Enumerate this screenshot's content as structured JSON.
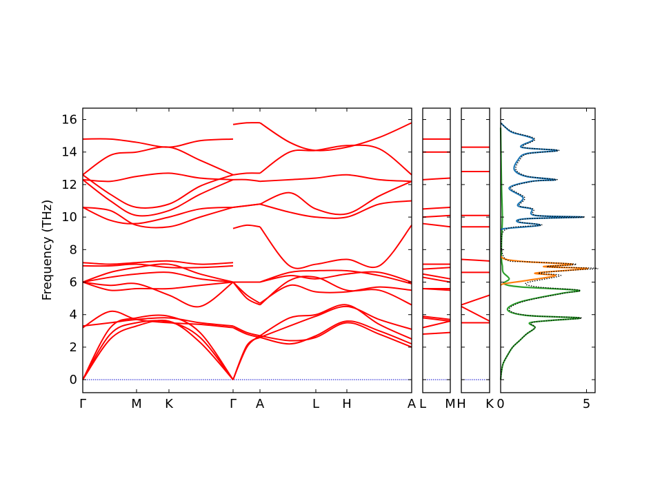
{
  "chart_data": {
    "type": "line",
    "ylabel": "Frequency (THz)",
    "ylim": [
      -0.8,
      16.7
    ],
    "yticks": [
      0,
      2,
      4,
      6,
      8,
      10,
      12,
      14,
      16
    ],
    "band_color": "#ff0000",
    "zero_line_color": "#0000cc",
    "panels": [
      {
        "id": "main",
        "kpoints": [
          "Γ",
          "M",
          "K",
          "Γ",
          "A",
          "L",
          "H",
          "A"
        ],
        "segments": [
          {
            "from": "Γ",
            "to": "Γ",
            "bands": [
              [
                0,
                2.5,
                3.3,
                3.6,
                2.3,
                0
              ],
              [
                0,
                2.8,
                3.5,
                3.55,
                2.6,
                0
              ],
              [
                0,
                3.2,
                3.8,
                3.9,
                2.9,
                0
              ],
              [
                3.2,
                4.2,
                3.7,
                3.5,
                3.4,
                3.2
              ],
              [
                3.3,
                3.5,
                3.7,
                3.8,
                3.5,
                3.3
              ],
              [
                6.0,
                5.5,
                5.6,
                5.6,
                5.8,
                6.0
              ],
              [
                6.0,
                5.8,
                5.9,
                5.2,
                4.5,
                6.0
              ],
              [
                6.0,
                6.3,
                6.5,
                6.6,
                6.2,
                6.0
              ],
              [
                6.0,
                6.6,
                6.9,
                7.1,
                6.5,
                6.0
              ],
              [
                7.0,
                7.0,
                7.1,
                6.9,
                6.9,
                7.0
              ],
              [
                7.2,
                7.1,
                7.2,
                7.3,
                7.1,
                7.2
              ],
              [
                10.6,
                10.4,
                9.5,
                9.4,
                10.0,
                10.6
              ],
              [
                10.6,
                9.8,
                9.6,
                10.0,
                10.5,
                10.6
              ],
              [
                12.3,
                11.0,
                10.1,
                10.4,
                11.4,
                12.3
              ],
              [
                12.3,
                12.2,
                12.5,
                12.7,
                12.4,
                12.3
              ],
              [
                12.6,
                11.4,
                10.6,
                10.8,
                11.9,
                12.6
              ],
              [
                12.6,
                13.8,
                14.0,
                14.3,
                13.5,
                12.6
              ],
              [
                14.8,
                14.8,
                14.6,
                14.3,
                14.7,
                14.8
              ]
            ]
          },
          {
            "from": "Γ",
            "to": "A",
            "bands": [
              [
                0,
                2.0,
                2.7
              ],
              [
                0,
                2.1,
                2.6
              ],
              [
                3.2,
                2.8,
                2.6
              ],
              [
                3.3,
                2.9,
                2.7
              ],
              [
                6.0,
                5.0,
                4.6
              ],
              [
                6.0,
                5.2,
                4.7
              ],
              [
                6.0,
                6.0,
                6.0
              ],
              [
                6.0,
                6.0,
                6.0
              ],
              [
                9.3,
                9.5,
                9.4
              ],
              [
                10.6,
                10.7,
                10.8
              ],
              [
                10.6,
                10.7,
                10.8
              ],
              [
                12.3,
                12.3,
                12.2
              ],
              [
                12.6,
                12.7,
                12.7
              ],
              [
                15.7,
                15.8,
                15.8
              ]
            ]
          },
          {
            "from": "A",
            "to": "A",
            "bands": [
              [
                2.7,
                2.4,
                2.6,
                3.5,
                2.8,
                2.0
              ],
              [
                2.6,
                2.2,
                2.7,
                3.6,
                3.0,
                2.2
              ],
              [
                2.7,
                3.8,
                4.0,
                4.6,
                3.4,
                2.5
              ],
              [
                2.6,
                3.3,
                3.9,
                4.5,
                3.7,
                3.1
              ],
              [
                4.6,
                6.1,
                6.3,
                5.5,
                5.5,
                4.6
              ],
              [
                4.7,
                5.8,
                5.4,
                5.4,
                5.7,
                5.5
              ],
              [
                6.0,
                6.4,
                6.2,
                6.5,
                6.6,
                6.0
              ],
              [
                6.0,
                6.6,
                6.7,
                6.7,
                6.4,
                5.9
              ],
              [
                9.4,
                7.0,
                7.1,
                7.4,
                7.0,
                9.5
              ],
              [
                10.8,
                11.5,
                10.5,
                10.2,
                11.3,
                12.2
              ],
              [
                10.8,
                10.3,
                10.0,
                10.0,
                10.8,
                11.0
              ],
              [
                12.2,
                12.3,
                12.4,
                12.6,
                12.3,
                12.2
              ],
              [
                12.7,
                14.0,
                14.1,
                14.4,
                14.2,
                12.6
              ],
              [
                15.8,
                14.6,
                14.1,
                14.3,
                14.9,
                15.8
              ]
            ]
          }
        ]
      },
      {
        "id": "L-M",
        "kpoints": [
          "L",
          "M"
        ],
        "bands": [
          [
            2.8,
            2.9
          ],
          [
            3.2,
            3.6
          ],
          [
            3.8,
            3.6
          ],
          [
            3.9,
            3.7
          ],
          [
            5.6,
            5.5
          ],
          [
            5.6,
            5.6
          ],
          [
            6.3,
            6.0
          ],
          [
            6.5,
            6.2
          ],
          [
            6.8,
            6.9
          ],
          [
            7.1,
            7.1
          ],
          [
            10.0,
            10.1
          ],
          [
            10.5,
            10.6
          ],
          [
            12.3,
            12.4
          ],
          [
            14.0,
            14.0
          ],
          [
            14.8,
            14.8
          ],
          [
            9.6,
            9.4
          ]
        ]
      },
      {
        "id": "H-K",
        "kpoints": [
          "H",
          "K"
        ],
        "bands": [
          [
            3.5,
            3.5
          ],
          [
            4.5,
            3.6
          ],
          [
            4.6,
            5.2
          ],
          [
            6.6,
            6.6
          ],
          [
            7.4,
            7.3
          ],
          [
            9.4,
            9.4
          ],
          [
            10.1,
            10.1
          ],
          [
            12.8,
            12.8
          ],
          [
            14.3,
            14.3
          ]
        ]
      }
    ],
    "dos": {
      "xticks": [
        0,
        5
      ],
      "xlim": [
        0,
        5.5
      ],
      "series": [
        {
          "color": "#2ca02c",
          "points": [
            [
              0.0,
              0
            ],
            [
              0.05,
              0.5
            ],
            [
              0.15,
              1.0
            ],
            [
              0.4,
              1.5
            ],
            [
              0.7,
              2.0
            ],
            [
              1.1,
              2.4
            ],
            [
              1.5,
              2.8
            ],
            [
              2.0,
              3.2
            ],
            [
              1.7,
              3.5
            ],
            [
              3.0,
              3.65
            ],
            [
              4.6,
              3.8
            ],
            [
              1.5,
              3.95
            ],
            [
              0.4,
              4.3
            ],
            [
              1.2,
              4.8
            ],
            [
              3.5,
              5.3
            ],
            [
              4.5,
              5.5
            ],
            [
              1.2,
              5.7
            ],
            [
              0.2,
              5.9
            ],
            [
              0.5,
              6.2
            ],
            [
              0.15,
              6.6
            ],
            [
              0.1,
              7.0
            ],
            [
              0.05,
              7.4
            ],
            [
              0.05,
              8.5
            ],
            [
              0.1,
              10.0
            ],
            [
              0.05,
              12.0
            ],
            [
              0.0,
              15.5
            ]
          ]
        },
        {
          "color": "#ff7f0e",
          "points": [
            [
              0.0,
              5.8
            ],
            [
              0.2,
              5.9
            ],
            [
              1.5,
              6.1
            ],
            [
              3.2,
              6.4
            ],
            [
              2.0,
              6.55
            ],
            [
              4.2,
              6.75
            ],
            [
              5.0,
              6.85
            ],
            [
              2.5,
              6.95
            ],
            [
              4.2,
              7.1
            ],
            [
              1.5,
              7.25
            ],
            [
              0.3,
              7.4
            ],
            [
              0.0,
              7.6
            ]
          ]
        },
        {
          "color": "#1f77b4",
          "points": [
            [
              0.0,
              9.2
            ],
            [
              0.3,
              9.3
            ],
            [
              2.3,
              9.5
            ],
            [
              1.0,
              9.7
            ],
            [
              1.5,
              9.9
            ],
            [
              4.8,
              10.0
            ],
            [
              2.0,
              10.1
            ],
            [
              1.8,
              10.5
            ],
            [
              1.0,
              10.7
            ],
            [
              1.3,
              11.2
            ],
            [
              0.5,
              11.8
            ],
            [
              1.8,
              12.2
            ],
            [
              3.2,
              12.3
            ],
            [
              1.5,
              12.5
            ],
            [
              0.8,
              12.9
            ],
            [
              1.0,
              13.5
            ],
            [
              1.5,
              13.9
            ],
            [
              3.3,
              14.1
            ],
            [
              1.2,
              14.3
            ],
            [
              1.9,
              14.8
            ],
            [
              0.7,
              15.2
            ],
            [
              0.3,
              15.5
            ],
            [
              0.0,
              15.8
            ]
          ]
        },
        {
          "color": "#000000",
          "dotted": true,
          "points": [
            [
              0.0,
              0
            ],
            [
              0.05,
              0.5
            ],
            [
              0.15,
              1.0
            ],
            [
              0.4,
              1.5
            ],
            [
              0.7,
              2.0
            ],
            [
              1.1,
              2.4
            ],
            [
              1.5,
              2.8
            ],
            [
              2.0,
              3.2
            ],
            [
              1.8,
              3.5
            ],
            [
              3.0,
              3.65
            ],
            [
              4.7,
              3.8
            ],
            [
              1.6,
              3.95
            ],
            [
              0.5,
              4.3
            ],
            [
              1.3,
              4.8
            ],
            [
              3.6,
              5.3
            ],
            [
              4.6,
              5.5
            ],
            [
              2.2,
              5.7
            ],
            [
              1.5,
              5.95
            ],
            [
              3.5,
              6.4
            ],
            [
              2.2,
              6.55
            ],
            [
              4.4,
              6.75
            ],
            [
              5.6,
              6.85
            ],
            [
              2.7,
              6.95
            ],
            [
              4.4,
              7.1
            ],
            [
              1.6,
              7.25
            ],
            [
              0.3,
              7.4
            ],
            [
              0.05,
              8.5
            ],
            [
              0.4,
              9.3
            ],
            [
              2.4,
              9.5
            ],
            [
              1.1,
              9.7
            ],
            [
              1.6,
              9.9
            ],
            [
              4.9,
              10.0
            ],
            [
              2.1,
              10.1
            ],
            [
              1.9,
              10.5
            ],
            [
              1.1,
              10.7
            ],
            [
              1.4,
              11.2
            ],
            [
              0.6,
              11.8
            ],
            [
              1.9,
              12.2
            ],
            [
              3.3,
              12.3
            ],
            [
              1.6,
              12.5
            ],
            [
              0.9,
              12.9
            ],
            [
              1.1,
              13.5
            ],
            [
              1.6,
              13.9
            ],
            [
              3.4,
              14.1
            ],
            [
              1.3,
              14.3
            ],
            [
              2.0,
              14.8
            ],
            [
              0.8,
              15.2
            ],
            [
              0.3,
              15.5
            ],
            [
              0.0,
              15.8
            ]
          ]
        }
      ]
    }
  }
}
